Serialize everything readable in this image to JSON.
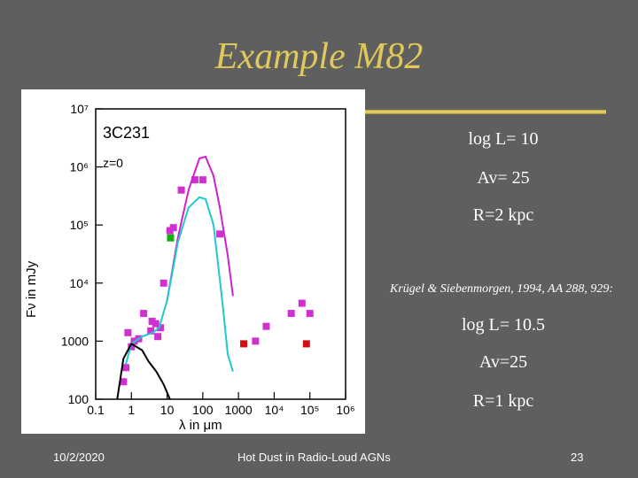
{
  "slide": {
    "title": "Example M82",
    "right_lines": [
      "log L= 10",
      "Av= 25",
      "R=2 kpc",
      "log L= 10.5",
      "Av=25",
      "R=1 kpc"
    ],
    "reference": "Krügel & Siebenmorgen, 1994, AA 288, 929:",
    "footer": {
      "date": "10/2/2020",
      "center": "Hot Dust in Radio-Loud AGNs",
      "page": "23"
    },
    "colors": {
      "background": "#5f5f5f",
      "title": "#e0c85a",
      "text": "#ffffff"
    }
  },
  "plot": {
    "object_label": "3C231",
    "z_label": "z=0",
    "y_axis_label": "Fν  in mJy",
    "x_axis_label": "λ  in  μm",
    "y_ticks": [
      "10⁷",
      "10⁶",
      "10⁵",
      "10⁴",
      "1000",
      "100"
    ],
    "x_ticks": [
      "0.1",
      "1",
      "10",
      "100",
      "1000",
      "10⁴",
      "10⁵",
      "10⁶"
    ]
  },
  "chart_data": {
    "type": "scatter",
    "title": "",
    "xlabel": "λ in μm",
    "ylabel": "Fν in mJy",
    "x_scale": "log",
    "y_scale": "log",
    "xlim": [
      0.1,
      1000000
    ],
    "ylim": [
      100,
      10000000
    ],
    "series": [
      {
        "name": "",
        "kind": "points",
        "color": "#d030d0",
        "x": [
          0.6,
          0.7,
          0.8,
          1.0,
          1.2,
          1.6,
          2.2,
          3.5,
          3.8,
          4.8,
          5.5,
          6.5,
          8,
          12,
          15,
          25,
          60,
          100,
          300,
          3000,
          6000,
          30000,
          60000,
          100000
        ],
        "y": [
          200,
          350,
          1400,
          800,
          1000,
          1100,
          3000,
          1500,
          2200,
          2000,
          1200,
          1700,
          10000,
          80000,
          90000,
          400000,
          600000,
          600000,
          70000,
          1000,
          1800,
          3000,
          4500,
          3000
        ]
      },
      {
        "name": "",
        "kind": "points",
        "color": "#d01010",
        "x": [
          1400,
          80000
        ],
        "y": [
          900,
          900
        ]
      },
      {
        "name": "",
        "kind": "points",
        "color": "#10b010",
        "x": [
          12.5
        ],
        "y": [
          60000
        ]
      },
      {
        "name": "",
        "kind": "line",
        "color": "#d020d0",
        "x": [
          10,
          20,
          40,
          80,
          120,
          200,
          300,
          500,
          700
        ],
        "y": [
          5000,
          60000,
          400000,
          1400000,
          1500000,
          700000,
          200000,
          30000,
          6000
        ]
      },
      {
        "name": "",
        "kind": "line",
        "color": "#20c8d0",
        "x": [
          0.7,
          1,
          2,
          4,
          6,
          10,
          20,
          40,
          80,
          120,
          200,
          350,
          500,
          700
        ],
        "y": [
          400,
          900,
          1200,
          1400,
          1700,
          5000,
          50000,
          200000,
          300000,
          280000,
          100000,
          5000,
          600,
          300
        ]
      },
      {
        "name": "",
        "kind": "line",
        "color": "#000000",
        "x": [
          0.4,
          0.6,
          1,
          2,
          3,
          5,
          8,
          12
        ],
        "y": [
          100,
          500,
          900,
          700,
          450,
          300,
          180,
          100
        ]
      }
    ]
  }
}
